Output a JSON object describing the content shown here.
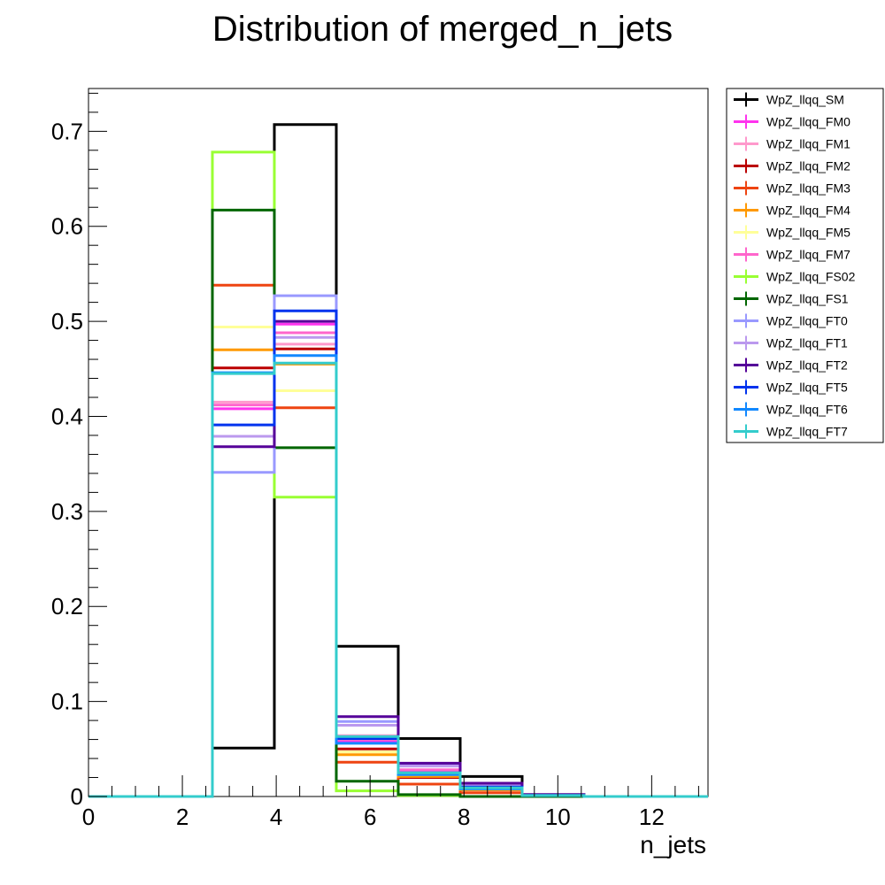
{
  "chart_data": {
    "type": "histogram",
    "title": "Distribution of merged_n_jets",
    "xlabel": "n_jets",
    "ylabel": "",
    "xlim": [
      0,
      13.2
    ],
    "ylim": [
      0,
      0.745
    ],
    "x_ticks": [
      0,
      2,
      4,
      6,
      8,
      10,
      12
    ],
    "x_tick_labels": [
      "0",
      "2",
      "4",
      "6",
      "8",
      "10",
      "12"
    ],
    "y_ticks": [
      0,
      0.1,
      0.2,
      0.3,
      0.4,
      0.5,
      0.6,
      0.7
    ],
    "y_tick_labels": [
      "0",
      "0.1",
      "0.2",
      "0.3",
      "0.4",
      "0.5",
      "0.6",
      "0.7"
    ],
    "grid": false,
    "legend_position": "outside-right",
    "bin_edges": [
      0,
      1.32,
      2.64,
      3.96,
      5.28,
      6.6,
      7.92,
      9.24,
      10.56,
      11.88,
      13.2
    ],
    "series": [
      {
        "name": "WpZ_llqq_SM",
        "color": "#000000",
        "values": [
          0,
          0,
          0.051,
          0.707,
          0.158,
          0.061,
          0.021,
          0.002,
          0,
          0
        ]
      },
      {
        "name": "WpZ_llqq_FM0",
        "color": "#ff33ee",
        "values": [
          0,
          0,
          0.408,
          0.497,
          0.058,
          0.026,
          0.009,
          0.001,
          0,
          0
        ]
      },
      {
        "name": "WpZ_llqq_FM1",
        "color": "#ff99cc",
        "values": [
          0,
          0,
          0.415,
          0.476,
          0.064,
          0.028,
          0.01,
          0.001,
          0,
          0
        ]
      },
      {
        "name": "WpZ_llqq_FM2",
        "color": "#bb0000",
        "values": [
          0,
          0,
          0.451,
          0.471,
          0.05,
          0.02,
          0.007,
          0.001,
          0,
          0
        ]
      },
      {
        "name": "WpZ_llqq_FM3",
        "color": "#ee4411",
        "values": [
          0,
          0,
          0.538,
          0.409,
          0.036,
          0.013,
          0.004,
          0,
          0,
          0
        ]
      },
      {
        "name": "WpZ_llqq_FM4",
        "color": "#ff9900",
        "values": [
          0,
          0,
          0.47,
          0.455,
          0.044,
          0.021,
          0.007,
          0.001,
          0,
          0
        ]
      },
      {
        "name": "WpZ_llqq_FM5",
        "color": "#ffff99",
        "values": [
          0,
          0,
          0.494,
          0.427,
          0.047,
          0.023,
          0.008,
          0.001,
          0,
          0
        ]
      },
      {
        "name": "WpZ_llqq_FM7",
        "color": "#ff66cc",
        "values": [
          0,
          0,
          0.412,
          0.488,
          0.06,
          0.028,
          0.01,
          0.001,
          0,
          0
        ]
      },
      {
        "name": "WpZ_llqq_FS02",
        "color": "#99ff33",
        "values": [
          0,
          0,
          0.678,
          0.315,
          0.006,
          0.001,
          0,
          0,
          0,
          0
        ]
      },
      {
        "name": "WpZ_llqq_FS1",
        "color": "#006600",
        "values": [
          0,
          0,
          0.617,
          0.367,
          0.016,
          0.002,
          0,
          0,
          0,
          0
        ]
      },
      {
        "name": "WpZ_llqq_FT0",
        "color": "#9999ff",
        "values": [
          0,
          0,
          0.341,
          0.527,
          0.079,
          0.033,
          0.013,
          0.002,
          0,
          0
        ]
      },
      {
        "name": "WpZ_llqq_FT1",
        "color": "#bb99ee",
        "values": [
          0,
          0,
          0.379,
          0.483,
          0.075,
          0.032,
          0.012,
          0.002,
          0,
          0
        ]
      },
      {
        "name": "WpZ_llqq_FT2",
        "color": "#550099",
        "values": [
          0,
          0,
          0.368,
          0.5,
          0.084,
          0.035,
          0.014,
          0.002,
          0,
          0
        ]
      },
      {
        "name": "WpZ_llqq_FT5",
        "color": "#0033ee",
        "values": [
          0,
          0,
          0.391,
          0.511,
          0.061,
          0.025,
          0.01,
          0.001,
          0,
          0
        ]
      },
      {
        "name": "WpZ_llqq_FT6",
        "color": "#1188ff",
        "values": [
          0,
          0,
          0.446,
          0.464,
          0.056,
          0.023,
          0.008,
          0.001,
          0,
          0
        ]
      },
      {
        "name": "WpZ_llqq_FT7",
        "color": "#33cccc",
        "values": [
          0,
          0,
          0.445,
          0.456,
          0.063,
          0.025,
          0.009,
          0.001,
          0,
          0
        ]
      }
    ]
  }
}
